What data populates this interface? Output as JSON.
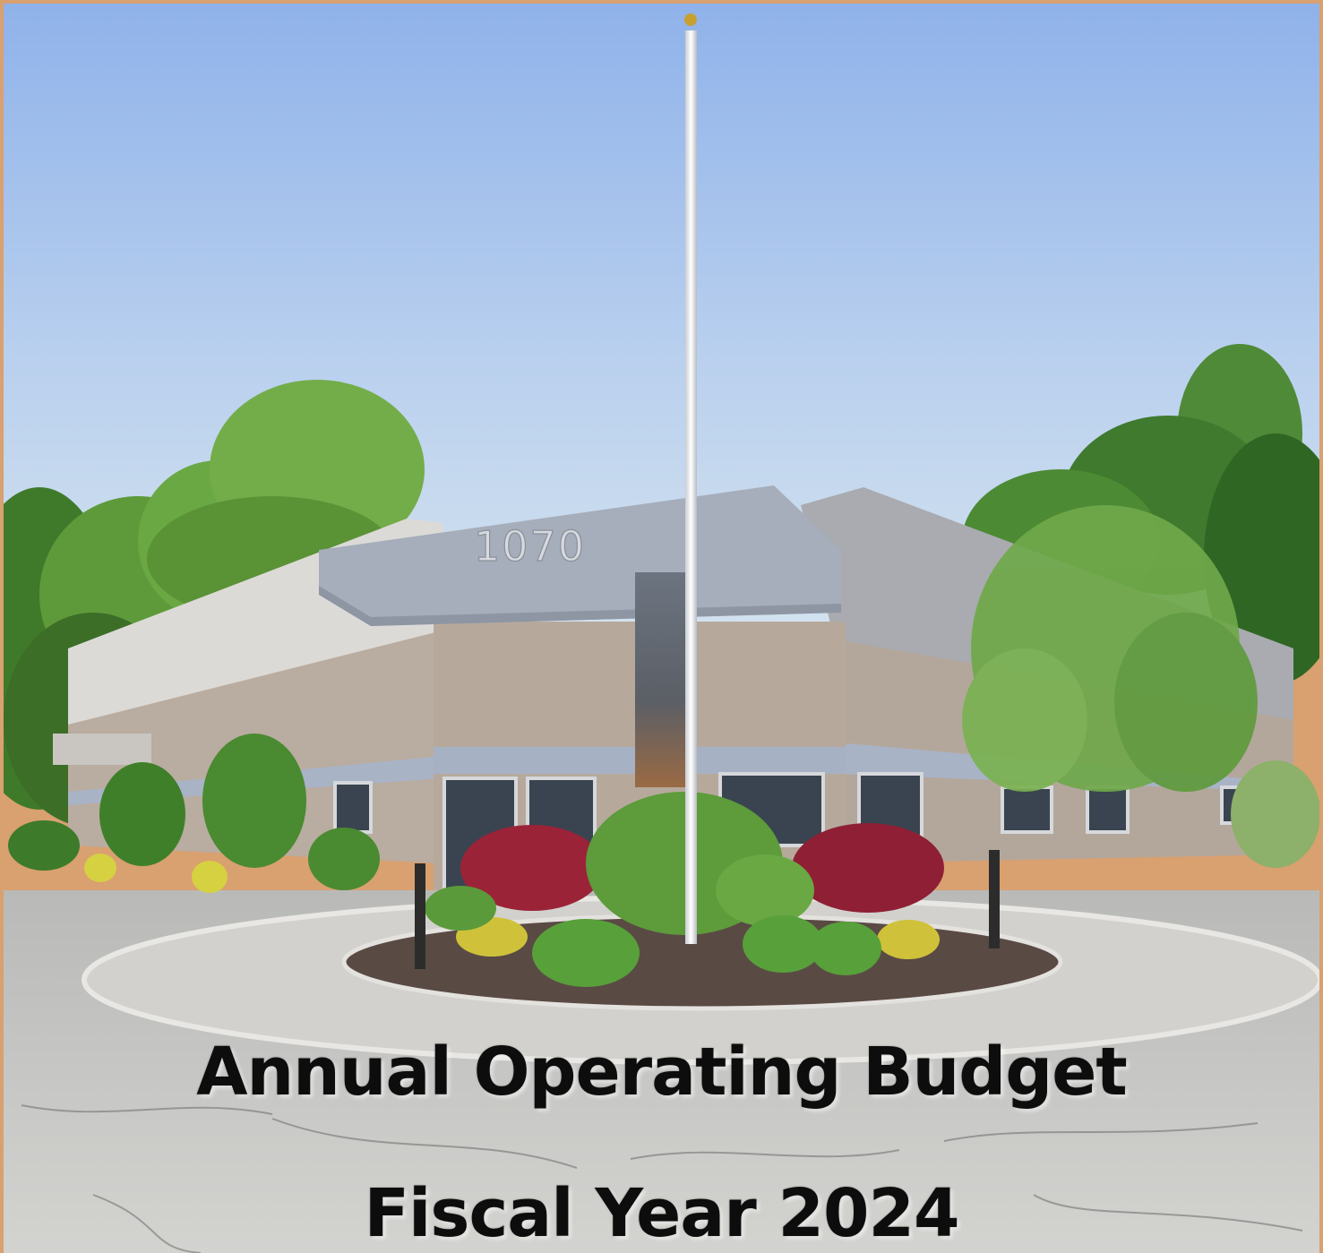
{
  "cover": {
    "building_number": "1070",
    "title_line_1": "Annual Operating Budget",
    "title_line_2": "Fiscal Year 2024"
  },
  "colors": {
    "frame": "#d9a070",
    "sky_top": "#8fb2ea",
    "sky_bottom": "#cfe0ef",
    "wall": "#b8ab9f",
    "trim": "#a9b3c6",
    "foliage": "#5f9a3c",
    "maple": "#a0263c",
    "pavement": "#c7c8c6"
  }
}
